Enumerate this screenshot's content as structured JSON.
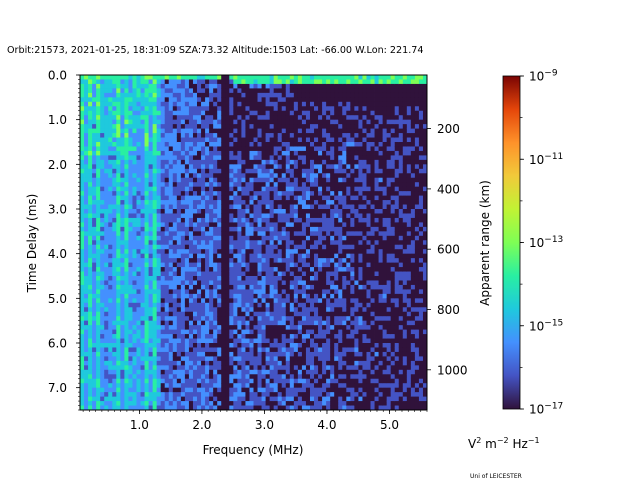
{
  "title": "Orbit:21573, 2021-01-25, 18:31:09 SZA:73.32 Altitude:1503 Lat: -66.00 W.Lon: 221.74",
  "credit": "Uni of LEICESTER",
  "chart_data": {
    "type": "heatmap",
    "xlabel": "Frequency (MHz)",
    "ylabel": "Time Delay (ms)",
    "y2label": "Apparent range (km)",
    "xlim": [
      0.05,
      5.6
    ],
    "ylim": [
      7.5,
      0.0
    ],
    "x_ticks": [
      {
        "value": 1.0,
        "label": "1.0"
      },
      {
        "value": 2.0,
        "label": "2.0"
      },
      {
        "value": 3.0,
        "label": "3.0"
      },
      {
        "value": 4.0,
        "label": "4.0"
      },
      {
        "value": 5.0,
        "label": "5.0"
      }
    ],
    "y_ticks": [
      {
        "value": 0.0,
        "label": "0.0"
      },
      {
        "value": 1.0,
        "label": "1.0"
      },
      {
        "value": 2.0,
        "label": "2.0"
      },
      {
        "value": 3.0,
        "label": "3.0"
      },
      {
        "value": 4.0,
        "label": "4.0"
      },
      {
        "value": 5.0,
        "label": "5.0"
      },
      {
        "value": 6.0,
        "label": "6.0"
      },
      {
        "value": 7.0,
        "label": "7.0"
      }
    ],
    "y2_ticks": [
      {
        "delay_ms": 1.2,
        "label": "200"
      },
      {
        "delay_ms": 2.55,
        "label": "400"
      },
      {
        "delay_ms": 3.9,
        "label": "600"
      },
      {
        "delay_ms": 5.25,
        "label": "800"
      },
      {
        "delay_ms": 6.6,
        "label": "1000"
      }
    ],
    "colorbar": {
      "colormap": "turbo",
      "scale": "log",
      "range": [
        1e-17,
        1e-09
      ],
      "ticks": [
        {
          "exponent": -17,
          "label": "10",
          "sup": "−17"
        },
        {
          "exponent": -15,
          "label": "10",
          "sup": "−15"
        },
        {
          "exponent": -13,
          "label": "10",
          "sup": "−13"
        },
        {
          "exponent": -11,
          "label": "10",
          "sup": "−11"
        },
        {
          "exponent": -9,
          "label": "10",
          "sup": "−9"
        }
      ],
      "unit": {
        "v": "V",
        "v_exp": "2",
        "m": " m",
        "m_exp": "−2",
        "hz": " Hz",
        "hz_exp": "−1"
      }
    },
    "grid": false
  }
}
